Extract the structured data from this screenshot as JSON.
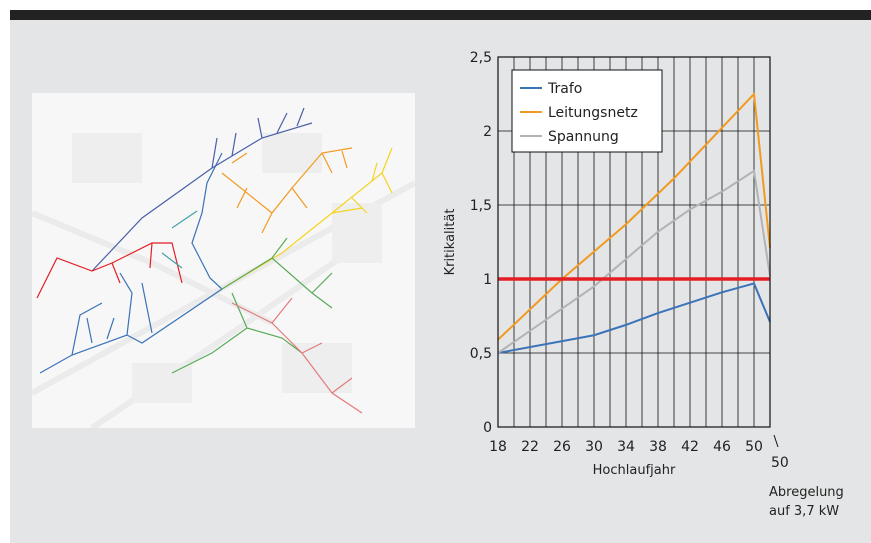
{
  "chart_data": {
    "type": "line",
    "x_tick_labels": [
      "18",
      "22",
      "26",
      "30",
      "34",
      "38",
      "42",
      "46",
      "50"
    ],
    "x_extra_tick_label": "50",
    "y_tick_labels": [
      "0",
      "0,5",
      "1",
      "1,5",
      "2",
      "2,5"
    ],
    "ylabel": "Kritikalität",
    "xlabel": "Hochlaufjahr",
    "annotation_line1": "Abregelung",
    "annotation_line2": "auf 3,7 kW",
    "ylim": [
      0,
      2.5
    ],
    "xlim": [
      18,
      52
    ],
    "grid": true,
    "legend_position": "top-left",
    "threshold": {
      "value": 1,
      "color": "#e31e24"
    },
    "series": [
      {
        "name": "Trafo",
        "color": "#3b73b9",
        "x": [
          18,
          30,
          34,
          38,
          42,
          46,
          50,
          52
        ],
        "y": [
          0.5,
          0.62,
          0.69,
          0.77,
          0.84,
          0.91,
          0.97,
          0.71
        ]
      },
      {
        "name": "Leitungsnetz",
        "color": "#f29a1f",
        "x": [
          18,
          26,
          34,
          40,
          50,
          52
        ],
        "y": [
          0.59,
          1.0,
          1.37,
          1.68,
          2.25,
          1.21
        ]
      },
      {
        "name": "Spannung",
        "color": "#b3b3b3",
        "x": [
          18,
          30,
          38,
          42,
          46,
          50,
          52
        ],
        "y": [
          0.5,
          0.95,
          1.32,
          1.47,
          1.59,
          1.73,
          1.02
        ]
      }
    ]
  },
  "map": {
    "colors": [
      "#3b73b9",
      "#e31e24",
      "#f29a1f",
      "#f5d320",
      "#5aab58",
      "#e27b7b",
      "#44a0a8",
      "#4960a8",
      "#7e60a8",
      "#9fc58f"
    ]
  }
}
